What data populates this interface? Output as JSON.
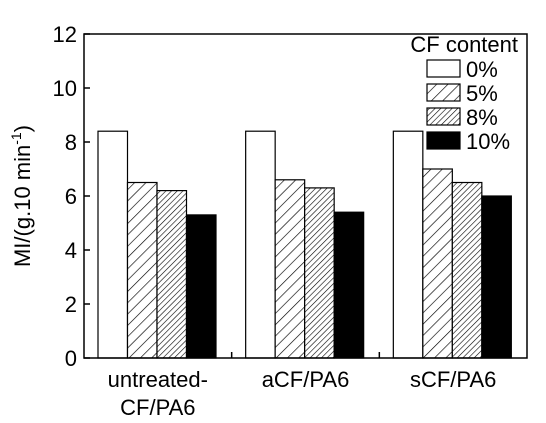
{
  "chart_data": {
    "type": "bar",
    "categories": [
      [
        "untreated-",
        "CF/PA6"
      ],
      [
        "aCF/PA6"
      ],
      [
        "sCF/PA6"
      ]
    ],
    "series": [
      {
        "name": "0%",
        "values": [
          8.4,
          8.4,
          8.4
        ],
        "fill": "white"
      },
      {
        "name": "5%",
        "values": [
          6.5,
          6.6,
          7.0
        ],
        "fill": "hatch-sparse"
      },
      {
        "name": "8%",
        "values": [
          6.2,
          6.3,
          6.5
        ],
        "fill": "hatch-dense"
      },
      {
        "name": "10%",
        "values": [
          5.3,
          5.4,
          6.0
        ],
        "fill": "black"
      }
    ],
    "ylabel_main": "MI/(g.10 min",
    "ylabel_sup": "-1",
    "ylabel_close": ")",
    "ylim": [
      0,
      12
    ],
    "yticks": [
      "0",
      "2",
      "4",
      "6",
      "8",
      "10",
      "12"
    ],
    "legend_title": "CF content",
    "legend_position": "top-right",
    "grid": false
  }
}
